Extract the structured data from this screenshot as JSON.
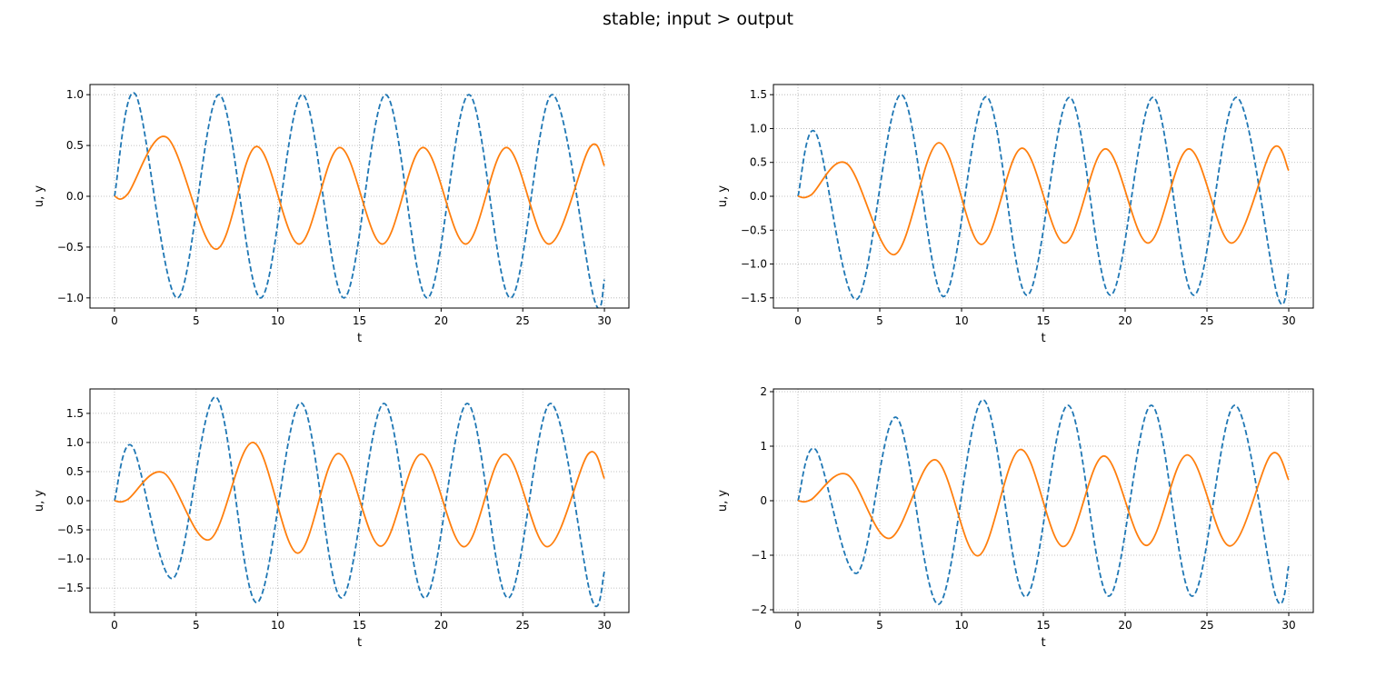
{
  "suptitle": "stable; input > output",
  "colors": {
    "input": "#1f77b4",
    "output": "#ff7f0e",
    "grid": "#b0b0b0"
  },
  "chart_data": [
    {
      "type": "line",
      "xlabel": "t",
      "ylabel": "u, y",
      "xlim": [
        -1.5,
        31.5
      ],
      "ylim": [
        -1.1,
        1.1
      ],
      "xticks": [
        0,
        5,
        10,
        15,
        20,
        25,
        30
      ],
      "xtick_labels": [
        "0",
        "5",
        "10",
        "15",
        "20",
        "25",
        "30"
      ],
      "yticks": [
        -1.0,
        -0.5,
        0.0,
        0.5,
        1.0
      ],
      "ytick_labels": [
        "−1.0",
        "−0.5",
        "0.0",
        "0.5",
        "1.0"
      ],
      "grid": true,
      "series": [
        {
          "style": "dashed",
          "color": "#1f77b4",
          "points": [
            [
              0,
              0
            ],
            [
              1.3,
              1.0
            ],
            [
              3.85,
              -1.0
            ],
            [
              6.4,
              1.0
            ],
            [
              8.95,
              -1.0
            ],
            [
              11.5,
              1.0
            ],
            [
              14.05,
              -1.0
            ],
            [
              16.6,
              1.0
            ],
            [
              19.15,
              -1.0
            ],
            [
              21.7,
              1.0
            ],
            [
              24.25,
              -1.0
            ],
            [
              26.8,
              1.0
            ],
            [
              29.35,
              -1.0
            ],
            [
              30,
              -0.82
            ]
          ]
        },
        {
          "style": "solid",
          "color": "#ff7f0e",
          "points": [
            [
              0,
              0
            ],
            [
              0.8,
              0.02
            ],
            [
              3.2,
              0.58
            ],
            [
              6.2,
              -0.52
            ],
            [
              8.7,
              0.49
            ],
            [
              11.3,
              -0.47
            ],
            [
              13.8,
              0.48
            ],
            [
              16.4,
              -0.47
            ],
            [
              18.9,
              0.48
            ],
            [
              21.5,
              -0.47
            ],
            [
              24.0,
              0.48
            ],
            [
              26.6,
              -0.47
            ],
            [
              29.1,
              0.48
            ],
            [
              30,
              0.3
            ]
          ]
        }
      ]
    },
    {
      "type": "line",
      "xlabel": "t",
      "ylabel": "u, y",
      "xlim": [
        -1.5,
        31.5
      ],
      "ylim": [
        -1.65,
        1.65
      ],
      "xticks": [
        0,
        5,
        10,
        15,
        20,
        25,
        30
      ],
      "xtick_labels": [
        "0",
        "5",
        "10",
        "15",
        "20",
        "25",
        "30"
      ],
      "yticks": [
        -1.5,
        -1.0,
        -0.5,
        0.0,
        0.5,
        1.0,
        1.5
      ],
      "ytick_labels": [
        "−1.5",
        "−1.0",
        "−0.5",
        "0.0",
        "0.5",
        "1.0",
        "1.5"
      ],
      "grid": true,
      "series": [
        {
          "style": "dashed",
          "color": "#1f77b4",
          "points": [
            [
              0,
              0
            ],
            [
              1.1,
              0.93
            ],
            [
              3.6,
              -1.52
            ],
            [
              6.3,
              1.5
            ],
            [
              8.9,
              -1.48
            ],
            [
              11.5,
              1.47
            ],
            [
              14.0,
              -1.46
            ],
            [
              16.6,
              1.46
            ],
            [
              19.1,
              -1.46
            ],
            [
              21.7,
              1.46
            ],
            [
              24.2,
              -1.46
            ],
            [
              26.8,
              1.46
            ],
            [
              29.3,
              -1.46
            ],
            [
              30,
              -1.12
            ]
          ]
        },
        {
          "style": "solid",
          "color": "#ff7f0e",
          "points": [
            [
              0,
              0
            ],
            [
              0.8,
              0.02
            ],
            [
              3.0,
              0.48
            ],
            [
              5.9,
              -0.86
            ],
            [
              8.6,
              0.79
            ],
            [
              11.2,
              -0.71
            ],
            [
              13.7,
              0.71
            ],
            [
              16.3,
              -0.69
            ],
            [
              18.8,
              0.7
            ],
            [
              21.4,
              -0.69
            ],
            [
              23.9,
              0.7
            ],
            [
              26.5,
              -0.69
            ],
            [
              29.0,
              0.7
            ],
            [
              30,
              0.38
            ]
          ]
        }
      ]
    },
    {
      "type": "line",
      "xlabel": "t",
      "ylabel": "u, y",
      "xlim": [
        -1.5,
        31.5
      ],
      "ylim": [
        -1.92,
        1.92
      ],
      "xticks": [
        0,
        5,
        10,
        15,
        20,
        25,
        30
      ],
      "xtick_labels": [
        "0",
        "5",
        "10",
        "15",
        "20",
        "25",
        "30"
      ],
      "yticks": [
        -1.5,
        -1.0,
        -0.5,
        0.0,
        0.5,
        1.0,
        1.5
      ],
      "ytick_labels": [
        "−1.5",
        "−1.0",
        "−0.5",
        "0.0",
        "0.5",
        "1.0",
        "1.5"
      ],
      "grid": true,
      "series": [
        {
          "style": "dashed",
          "color": "#1f77b4",
          "points": [
            [
              0,
              0
            ],
            [
              1.1,
              0.93
            ],
            [
              3.6,
              -1.33
            ],
            [
              6.2,
              1.78
            ],
            [
              8.7,
              -1.75
            ],
            [
              11.4,
              1.68
            ],
            [
              13.9,
              -1.67
            ],
            [
              16.5,
              1.67
            ],
            [
              19.0,
              -1.67
            ],
            [
              21.6,
              1.67
            ],
            [
              24.1,
              -1.67
            ],
            [
              26.7,
              1.67
            ],
            [
              29.2,
              -1.67
            ],
            [
              30,
              -1.22
            ]
          ]
        },
        {
          "style": "solid",
          "color": "#ff7f0e",
          "points": [
            [
              0,
              0
            ],
            [
              0.8,
              0.02
            ],
            [
              3.0,
              0.48
            ],
            [
              5.8,
              -0.67
            ],
            [
              8.5,
              1.0
            ],
            [
              11.2,
              -0.9
            ],
            [
              13.7,
              0.81
            ],
            [
              16.3,
              -0.78
            ],
            [
              18.8,
              0.8
            ],
            [
              21.4,
              -0.79
            ],
            [
              23.9,
              0.8
            ],
            [
              26.5,
              -0.79
            ],
            [
              29.0,
              0.8
            ],
            [
              30,
              0.38
            ]
          ]
        }
      ]
    },
    {
      "type": "line",
      "xlabel": "t",
      "ylabel": "u, y",
      "xlim": [
        -1.5,
        31.5
      ],
      "ylim": [
        -2.05,
        2.05
      ],
      "xticks": [
        0,
        5,
        10,
        15,
        20,
        25,
        30
      ],
      "xtick_labels": [
        "0",
        "5",
        "10",
        "15",
        "20",
        "25",
        "30"
      ],
      "yticks": [
        -2,
        -1,
        0,
        1,
        2
      ],
      "ytick_labels": [
        "−2",
        "−1",
        "0",
        "1",
        "2"
      ],
      "grid": true,
      "series": [
        {
          "style": "dashed",
          "color": "#1f77b4",
          "points": [
            [
              0,
              0
            ],
            [
              1.1,
              0.93
            ],
            [
              3.6,
              -1.33
            ],
            [
              6.0,
              1.53
            ],
            [
              8.6,
              -1.9
            ],
            [
              11.3,
              1.85
            ],
            [
              13.9,
              -1.76
            ],
            [
              16.5,
              1.75
            ],
            [
              19.0,
              -1.75
            ],
            [
              21.6,
              1.75
            ],
            [
              24.1,
              -1.75
            ],
            [
              26.7,
              1.75
            ],
            [
              29.2,
              -1.75
            ],
            [
              30,
              -1.2
            ]
          ]
        },
        {
          "style": "solid",
          "color": "#ff7f0e",
          "points": [
            [
              0,
              0
            ],
            [
              0.8,
              0.02
            ],
            [
              3.0,
              0.48
            ],
            [
              5.6,
              -0.69
            ],
            [
              8.4,
              0.75
            ],
            [
              11.0,
              -1.01
            ],
            [
              13.6,
              0.94
            ],
            [
              16.2,
              -0.84
            ],
            [
              18.7,
              0.82
            ],
            [
              21.3,
              -0.82
            ],
            [
              23.8,
              0.84
            ],
            [
              26.4,
              -0.83
            ],
            [
              28.9,
              0.84
            ],
            [
              30,
              0.38
            ]
          ]
        }
      ]
    }
  ]
}
